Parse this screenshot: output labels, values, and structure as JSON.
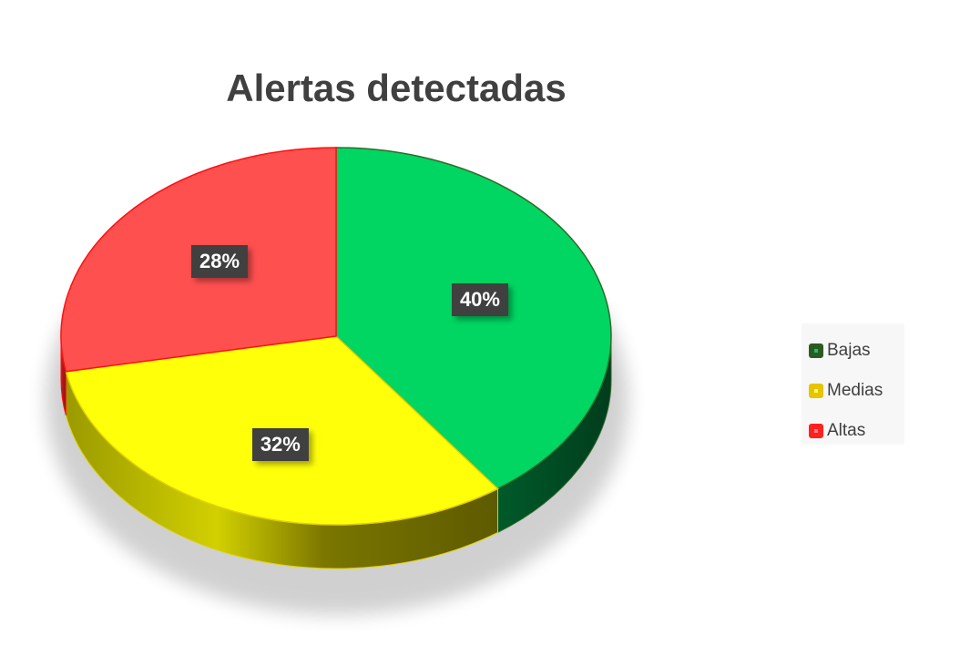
{
  "chart_data": {
    "type": "pie",
    "title": "Alertas detectadas",
    "slices": [
      {
        "label": "Bajas",
        "value": 40,
        "display": "40%",
        "color": "#00d661",
        "side_color": "#00542a",
        "legend_color": "#2a5c22",
        "legend_dot": "#1fbf6b"
      },
      {
        "label": "Medias",
        "value": 32,
        "display": "32%",
        "color": "#ffff0a",
        "side_color": "#8a8600",
        "legend_color": "#e8c300",
        "legend_dot": "#ffff66"
      },
      {
        "label": "Altas",
        "value": 28,
        "display": "28%",
        "color": "#ff5050",
        "side_color": "#b02020",
        "legend_color": "#ff2020",
        "legend_dot": "#ff8080"
      }
    ],
    "legend_position": "right",
    "label_style": "dark boxes with white text"
  }
}
